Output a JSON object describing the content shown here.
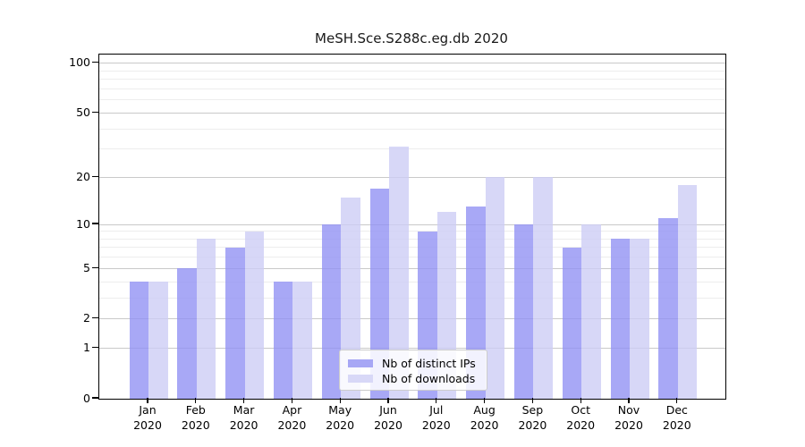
{
  "title": "MeSH.Sce.S288c.eg.db 2020",
  "chart_data": {
    "type": "bar",
    "title": "MeSH.Sce.S288c.eg.db 2020",
    "x_months": [
      "Jan",
      "Feb",
      "Mar",
      "Apr",
      "May",
      "Jun",
      "Jul",
      "Aug",
      "Sep",
      "Oct",
      "Nov",
      "Dec"
    ],
    "x_year": "2020",
    "series": [
      {
        "name": "Nb of distinct IPs",
        "values": [
          4,
          5,
          7,
          4,
          10,
          17,
          9,
          13,
          10,
          7,
          8,
          11
        ],
        "bar_color": "rgba(146,146,244,0.8)",
        "legend_color": "#a7a7f5"
      },
      {
        "name": "Nb of downloads",
        "values": [
          4,
          8,
          9,
          4,
          15,
          31,
          12,
          20,
          20,
          10,
          8,
          18
        ],
        "bar_color": "rgba(205,205,245,0.8)",
        "legend_color": "#d8d8f7"
      }
    ],
    "yscale": "log1p",
    "ylim": [
      0,
      113
    ],
    "y_tick_labels": [
      "100",
      "50",
      "20",
      "10",
      "5",
      "2",
      "1",
      "0"
    ],
    "y_tick_values": [
      100,
      50,
      20,
      10,
      5,
      2,
      1,
      0
    ],
    "y_minor_gridlines": [
      3,
      4,
      6,
      7,
      8,
      9,
      30,
      40,
      60,
      70,
      80,
      90
    ],
    "grid": true,
    "legend_position": "lower-center"
  },
  "colors": {
    "background": "#ffffff",
    "axis": "#000000",
    "major_grid": "#c9c9c9",
    "minor_grid": "#ededed",
    "title_text": "#1a1a1a"
  }
}
